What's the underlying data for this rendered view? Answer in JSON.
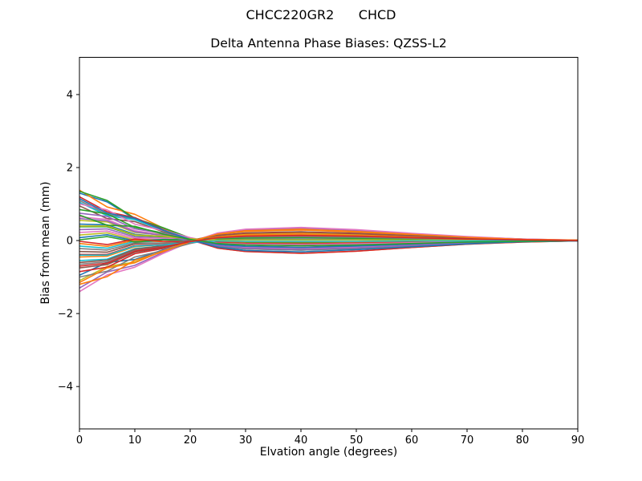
{
  "figure": {
    "suptitle": "CHCC220GR2      CHCD",
    "background": "#ffffff",
    "spine_color": "#000000"
  },
  "chart_data": {
    "type": "line",
    "title": "Delta Antenna Phase Biases: QZSS-L2",
    "xlabel": "Elvation angle (degrees)",
    "ylabel": "Bias from mean (mm)",
    "xlim": [
      0,
      90
    ],
    "ylim": [
      -5.16,
      5.02
    ],
    "xticks": [
      0,
      10,
      20,
      30,
      40,
      50,
      60,
      70,
      80,
      90
    ],
    "yticks": [
      -4,
      -2,
      0,
      2,
      4
    ],
    "grid": false,
    "legend": "none",
    "x": [
      0,
      5,
      10,
      15,
      20,
      25,
      30,
      40,
      50,
      60,
      70,
      80,
      90
    ],
    "series": [
      {
        "color": "#1f77b4",
        "values": [
          1.3,
          1.06,
          0.59,
          0.34,
          0.06,
          -0.16,
          -0.23,
          -0.26,
          -0.22,
          -0.14,
          -0.08,
          -0.03,
          -0.01
        ]
      },
      {
        "color": "#ff7f0e",
        "values": [
          1.38,
          0.92,
          0.72,
          0.35,
          0.04,
          -0.21,
          -0.3,
          -0.35,
          -0.29,
          -0.19,
          -0.1,
          -0.04,
          -0.01
        ]
      },
      {
        "color": "#2ca02c",
        "values": [
          1.35,
          1.1,
          0.61,
          0.36,
          0.07,
          -0.14,
          -0.2,
          -0.23,
          -0.19,
          -0.13,
          -0.07,
          -0.03,
          0.0
        ]
      },
      {
        "color": "#d62728",
        "values": [
          1.2,
          0.79,
          0.63,
          0.3,
          0.02,
          -0.21,
          -0.3,
          -0.35,
          -0.29,
          -0.19,
          -0.1,
          -0.04,
          -0.01
        ]
      },
      {
        "color": "#9467bd",
        "values": [
          -1.3,
          -0.86,
          -0.68,
          -0.33,
          -0.04,
          0.2,
          0.29,
          0.34,
          0.28,
          0.19,
          0.1,
          0.04,
          0.01
        ]
      },
      {
        "color": "#8c564b",
        "values": [
          0.95,
          0.6,
          0.52,
          0.25,
          0.05,
          -0.1,
          -0.15,
          -0.18,
          -0.14,
          -0.1,
          -0.05,
          -0.02,
          0.0
        ]
      },
      {
        "color": "#e377c2",
        "values": [
          -1.4,
          -0.94,
          -0.73,
          -0.36,
          -0.04,
          0.21,
          0.31,
          0.36,
          0.3,
          0.2,
          0.11,
          0.04,
          0.01
        ]
      },
      {
        "color": "#7f7f7f",
        "values": [
          1.1,
          0.71,
          0.59,
          0.28,
          0.04,
          -0.16,
          -0.23,
          -0.26,
          -0.22,
          -0.14,
          -0.08,
          -0.03,
          -0.01
        ]
      },
      {
        "color": "#bcbd22",
        "values": [
          -1.1,
          -0.71,
          -0.59,
          -0.29,
          -0.05,
          0.12,
          0.18,
          0.21,
          0.17,
          0.11,
          0.06,
          0.02,
          0.0
        ]
      },
      {
        "color": "#17becf",
        "values": [
          1.05,
          0.68,
          0.57,
          0.28,
          0.06,
          -0.11,
          -0.16,
          -0.19,
          -0.15,
          -0.1,
          -0.05,
          -0.02,
          0.0
        ]
      },
      {
        "color": "#1f77b4",
        "values": [
          -0.95,
          -0.6,
          -0.52,
          -0.26,
          -0.06,
          0.08,
          0.12,
          0.14,
          0.12,
          0.08,
          0.04,
          0.02,
          0.0
        ]
      },
      {
        "color": "#ff7f0e",
        "values": [
          -1.2,
          -0.99,
          -0.54,
          -0.31,
          -0.04,
          0.17,
          0.25,
          0.29,
          0.23,
          0.16,
          0.08,
          0.03,
          0.01
        ]
      },
      {
        "color": "#2ca02c",
        "values": [
          0.85,
          0.73,
          0.36,
          0.21,
          0.02,
          -0.14,
          -0.21,
          -0.24,
          -0.2,
          -0.13,
          -0.07,
          -0.03,
          0.0
        ]
      },
      {
        "color": "#d62728",
        "values": [
          -0.85,
          -0.73,
          -0.36,
          -0.22,
          -0.02,
          0.14,
          0.2,
          0.23,
          0.19,
          0.13,
          0.07,
          0.03,
          0.0
        ]
      },
      {
        "color": "#9467bd",
        "values": [
          0.75,
          0.66,
          0.32,
          0.2,
          0.05,
          -0.06,
          -0.09,
          -0.1,
          -0.08,
          -0.05,
          -0.03,
          -0.01,
          0.0
        ]
      },
      {
        "color": "#8c564b",
        "values": [
          -0.75,
          -0.66,
          -0.32,
          -0.2,
          -0.04,
          0.07,
          0.1,
          0.12,
          0.1,
          0.07,
          0.04,
          0.01,
          0.0
        ]
      },
      {
        "color": "#e377c2",
        "values": [
          0.65,
          0.58,
          0.27,
          0.16,
          0.01,
          -0.12,
          -0.18,
          -0.21,
          -0.17,
          -0.11,
          -0.06,
          -0.02,
          0.0
        ]
      },
      {
        "color": "#7f7f7f",
        "values": [
          -0.65,
          -0.58,
          -0.27,
          -0.17,
          -0.02,
          0.1,
          0.14,
          0.17,
          0.14,
          0.09,
          0.05,
          0.02,
          0.0
        ]
      },
      {
        "color": "#bcbd22",
        "values": [
          0.55,
          0.51,
          0.22,
          0.15,
          0.04,
          -0.04,
          -0.06,
          -0.07,
          -0.05,
          -0.04,
          -0.02,
          -0.01,
          0.0
        ]
      },
      {
        "color": "#17becf",
        "values": [
          -0.55,
          -0.51,
          -0.22,
          -0.15,
          -0.04,
          0.04,
          0.06,
          0.07,
          0.05,
          0.04,
          0.02,
          0.01,
          0.0
        ]
      },
      {
        "color": "#1f77b4",
        "values": [
          0.45,
          0.43,
          0.17,
          0.11,
          -0.01,
          -0.11,
          -0.16,
          -0.19,
          -0.15,
          -0.1,
          -0.05,
          -0.02,
          0.0
        ]
      },
      {
        "color": "#ff7f0e",
        "values": [
          -0.45,
          -0.43,
          -0.17,
          -0.11,
          0.01,
          0.1,
          0.15,
          0.18,
          0.14,
          0.1,
          0.05,
          0.02,
          0.0
        ]
      },
      {
        "color": "#2ca02c",
        "values": [
          0.38,
          0.38,
          0.14,
          0.1,
          0.02,
          -0.03,
          -0.05,
          -0.06,
          -0.05,
          -0.03,
          -0.02,
          -0.01,
          0.0
        ]
      },
      {
        "color": "#d62728",
        "values": [
          -0.38,
          -0.38,
          -0.14,
          -0.11,
          -0.03,
          0.01,
          0.02,
          0.02,
          0.02,
          0.01,
          0.01,
          0.0,
          0.0
        ]
      },
      {
        "color": "#9467bd",
        "values": [
          0.3,
          0.32,
          0.1,
          0.07,
          0.0,
          -0.07,
          -0.1,
          -0.11,
          -0.09,
          -0.06,
          -0.03,
          -0.01,
          0.0
        ]
      },
      {
        "color": "#8c564b",
        "values": [
          -0.3,
          -0.32,
          -0.09,
          -0.07,
          0.01,
          0.07,
          0.1,
          0.12,
          0.1,
          0.07,
          0.04,
          0.01,
          0.0
        ]
      },
      {
        "color": "#e377c2",
        "values": [
          0.22,
          0.26,
          0.06,
          0.07,
          0.04,
          0.03,
          0.04,
          0.04,
          0.04,
          0.02,
          0.01,
          0.0,
          0.0
        ]
      },
      {
        "color": "#7f7f7f",
        "values": [
          -0.22,
          -0.26,
          -0.06,
          -0.07,
          -0.03,
          -0.02,
          -0.03,
          -0.03,
          -0.03,
          -0.02,
          -0.01,
          0.0,
          0.0
        ]
      },
      {
        "color": "#bcbd22",
        "values": [
          0.15,
          0.21,
          0.02,
          0.03,
          -0.01,
          -0.05,
          -0.08,
          -0.09,
          -0.07,
          -0.05,
          -0.03,
          -0.01,
          0.0
        ]
      },
      {
        "color": "#17becf",
        "values": [
          -0.15,
          -0.21,
          -0.02,
          -0.03,
          0.02,
          0.06,
          0.09,
          0.1,
          0.08,
          0.05,
          0.03,
          0.01,
          0.0
        ]
      },
      {
        "color": "#1f77b4",
        "values": [
          0.08,
          0.16,
          -0.01,
          0.03,
          0.02,
          0.02,
          0.03,
          0.03,
          0.03,
          0.02,
          0.01,
          0.0,
          0.0
        ]
      },
      {
        "color": "#ff7f0e",
        "values": [
          -0.08,
          -0.16,
          0.01,
          -0.03,
          -0.02,
          -0.02,
          -0.03,
          -0.03,
          -0.03,
          -0.02,
          -0.01,
          0.0,
          0.0
        ]
      },
      {
        "color": "#2ca02c",
        "values": [
          0.02,
          0.11,
          -0.04,
          0.02,
          0.03,
          0.05,
          0.07,
          0.08,
          0.06,
          0.04,
          0.02,
          0.01,
          0.0
        ]
      },
      {
        "color": "#d62728",
        "values": [
          -0.02,
          -0.11,
          0.04,
          -0.02,
          -0.03,
          -0.05,
          -0.08,
          -0.09,
          -0.07,
          -0.05,
          -0.03,
          -0.01,
          0.0
        ]
      },
      {
        "color": "#9467bd",
        "values": [
          0.6,
          0.54,
          0.24,
          0.14,
          -0.01,
          -0.14,
          -0.21,
          -0.24,
          -0.2,
          -0.13,
          -0.07,
          -0.03,
          0.0
        ]
      },
      {
        "color": "#8c564b",
        "values": [
          -0.6,
          -0.54,
          -0.24,
          -0.14,
          0.01,
          0.14,
          0.21,
          0.24,
          0.2,
          0.13,
          0.07,
          0.03,
          0.0
        ]
      },
      {
        "color": "#e377c2",
        "values": [
          1.0,
          0.84,
          0.45,
          0.28,
          0.08,
          -0.07,
          -0.1,
          -0.11,
          -0.09,
          -0.06,
          -0.03,
          -0.01,
          0.0
        ]
      },
      {
        "color": "#7f7f7f",
        "values": [
          -1.0,
          -0.84,
          -0.45,
          -0.28,
          -0.08,
          0.07,
          0.1,
          0.11,
          0.09,
          0.06,
          0.03,
          0.01,
          0.0
        ]
      },
      {
        "color": "#bcbd22",
        "values": [
          0.4,
          0.4,
          0.15,
          0.12,
          0.05,
          0.01,
          0.02,
          0.02,
          0.02,
          0.01,
          0.01,
          0.0,
          0.0
        ]
      },
      {
        "color": "#17becf",
        "values": [
          -0.4,
          -0.4,
          -0.15,
          -0.12,
          -0.05,
          -0.01,
          -0.02,
          -0.02,
          -0.02,
          -0.01,
          -0.01,
          0.0,
          0.0
        ]
      },
      {
        "color": "#1f77b4",
        "values": [
          1.15,
          0.75,
          0.61,
          0.29,
          0.03,
          -0.18,
          -0.27,
          -0.31,
          -0.25,
          -0.17,
          -0.09,
          -0.03,
          -0.01
        ]
      },
      {
        "color": "#ff7f0e",
        "values": [
          -1.15,
          -0.75,
          -0.61,
          -0.29,
          -0.03,
          0.18,
          0.27,
          0.31,
          0.25,
          0.17,
          0.09,
          0.03,
          0.01
        ]
      },
      {
        "color": "#2ca02c",
        "values": [
          0.7,
          0.42,
          0.39,
          0.18,
          0.03,
          -0.08,
          -0.12,
          -0.14,
          -0.12,
          -0.08,
          -0.04,
          -0.02,
          0.0
        ]
      },
      {
        "color": "#d62728",
        "values": [
          -0.7,
          -0.62,
          -0.29,
          -0.18,
          -0.03,
          0.08,
          0.12,
          0.14,
          0.12,
          0.08,
          0.04,
          0.02,
          0.0
        ]
      }
    ]
  }
}
